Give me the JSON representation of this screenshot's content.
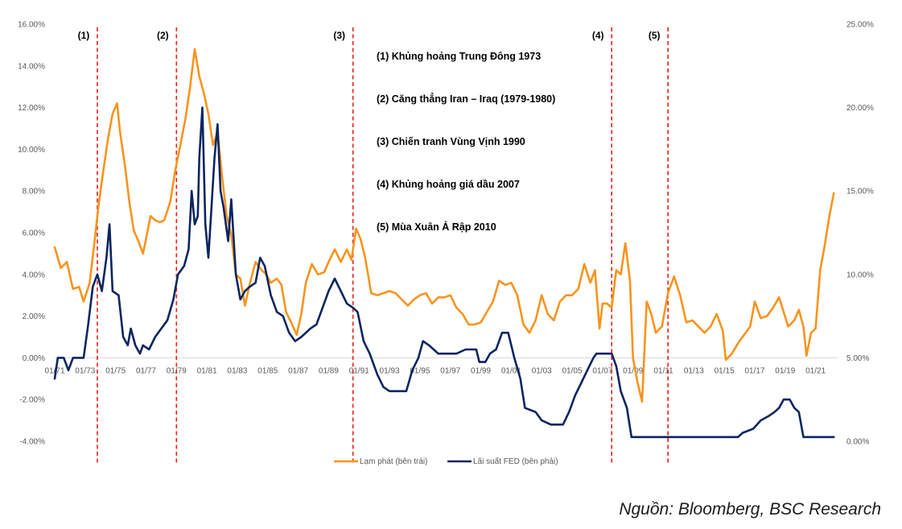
{
  "source": "Nguồn: Bloomberg, BSC Research",
  "chart_data": {
    "type": "line",
    "title": "",
    "x_start_year": 1971,
    "x_end_year": 2022.5,
    "x_tick_labels": [
      "01/71",
      "01/73",
      "01/75",
      "01/77",
      "01/79",
      "01/81",
      "01/83",
      "01/85",
      "01/87",
      "01/89",
      "01/91",
      "01/93",
      "01/95",
      "01/97",
      "01/99",
      "01/01",
      "01/03",
      "01/05",
      "01/07",
      "01/09",
      "01/11",
      "01/13",
      "01/15",
      "01/17",
      "01/19",
      "01/21"
    ],
    "y_left": {
      "min": -4,
      "max": 16,
      "step": 2,
      "tick_labels": [
        "-4.00%",
        "-2.00%",
        "0.00%",
        "2.00%",
        "4.00%",
        "6.00%",
        "8.00%",
        "10.00%",
        "12.00%",
        "14.00%",
        "16.00%"
      ]
    },
    "y_right": {
      "min": 0,
      "max": 25,
      "step": 5,
      "tick_labels": [
        "0.00%",
        "5.00%",
        "10.00%",
        "15.00%",
        "20.00%",
        "25.00%"
      ]
    },
    "series": [
      {
        "name": "Lạm phát (bên trái)",
        "axis": "left",
        "color": "#F7941D",
        "points": [
          [
            1971.0,
            5.3
          ],
          [
            1971.4,
            4.3
          ],
          [
            1971.8,
            4.6
          ],
          [
            1972.2,
            3.3
          ],
          [
            1972.6,
            3.4
          ],
          [
            1972.9,
            2.7
          ],
          [
            1973.3,
            3.6
          ],
          [
            1973.6,
            5.5
          ],
          [
            1973.9,
            7.4
          ],
          [
            1974.2,
            9.0
          ],
          [
            1974.5,
            10.5
          ],
          [
            1974.8,
            11.7
          ],
          [
            1975.1,
            12.2
          ],
          [
            1975.3,
            10.8
          ],
          [
            1975.6,
            9.3
          ],
          [
            1975.9,
            7.5
          ],
          [
            1976.2,
            6.1
          ],
          [
            1976.5,
            5.6
          ],
          [
            1976.8,
            5.0
          ],
          [
            1977.0,
            5.7
          ],
          [
            1977.3,
            6.8
          ],
          [
            1977.6,
            6.6
          ],
          [
            1977.9,
            6.5
          ],
          [
            1978.2,
            6.6
          ],
          [
            1978.6,
            7.5
          ],
          [
            1978.9,
            8.9
          ],
          [
            1979.2,
            10.0
          ],
          [
            1979.6,
            11.5
          ],
          [
            1979.9,
            13.0
          ],
          [
            1980.2,
            14.8
          ],
          [
            1980.5,
            13.5
          ],
          [
            1980.8,
            12.7
          ],
          [
            1981.1,
            11.7
          ],
          [
            1981.4,
            10.2
          ],
          [
            1981.7,
            10.8
          ],
          [
            1982.0,
            8.7
          ],
          [
            1982.3,
            6.8
          ],
          [
            1982.6,
            5.9
          ],
          [
            1982.9,
            4.0
          ],
          [
            1983.2,
            3.8
          ],
          [
            1983.5,
            2.5
          ],
          [
            1983.8,
            3.5
          ],
          [
            1984.2,
            4.6
          ],
          [
            1984.6,
            4.2
          ],
          [
            1984.9,
            4.0
          ],
          [
            1985.2,
            3.6
          ],
          [
            1985.6,
            3.8
          ],
          [
            1985.9,
            3.5
          ],
          [
            1986.2,
            2.2
          ],
          [
            1986.6,
            1.6
          ],
          [
            1986.9,
            1.1
          ],
          [
            1987.2,
            2.1
          ],
          [
            1987.5,
            3.6
          ],
          [
            1987.9,
            4.5
          ],
          [
            1988.3,
            4.0
          ],
          [
            1988.7,
            4.1
          ],
          [
            1989.0,
            4.6
          ],
          [
            1989.4,
            5.2
          ],
          [
            1989.8,
            4.6
          ],
          [
            1990.2,
            5.2
          ],
          [
            1990.5,
            4.7
          ],
          [
            1990.8,
            6.2
          ],
          [
            1991.1,
            5.7
          ],
          [
            1991.4,
            4.8
          ],
          [
            1991.8,
            3.1
          ],
          [
            1992.2,
            3.0
          ],
          [
            1992.6,
            3.1
          ],
          [
            1993.0,
            3.2
          ],
          [
            1993.4,
            3.1
          ],
          [
            1993.8,
            2.8
          ],
          [
            1994.2,
            2.5
          ],
          [
            1994.6,
            2.8
          ],
          [
            1995.0,
            3.0
          ],
          [
            1995.4,
            3.1
          ],
          [
            1995.8,
            2.6
          ],
          [
            1996.2,
            2.9
          ],
          [
            1996.6,
            2.9
          ],
          [
            1997.0,
            3.0
          ],
          [
            1997.4,
            2.4
          ],
          [
            1997.8,
            2.1
          ],
          [
            1998.2,
            1.6
          ],
          [
            1998.6,
            1.6
          ],
          [
            1999.0,
            1.7
          ],
          [
            1999.4,
            2.2
          ],
          [
            1999.8,
            2.7
          ],
          [
            2000.2,
            3.7
          ],
          [
            2000.6,
            3.5
          ],
          [
            2001.0,
            3.6
          ],
          [
            2001.4,
            3.0
          ],
          [
            2001.8,
            1.6
          ],
          [
            2002.2,
            1.2
          ],
          [
            2002.6,
            1.8
          ],
          [
            2003.0,
            3.0
          ],
          [
            2003.4,
            2.1
          ],
          [
            2003.8,
            1.8
          ],
          [
            2004.2,
            2.7
          ],
          [
            2004.6,
            3.0
          ],
          [
            2005.0,
            3.0
          ],
          [
            2005.4,
            3.3
          ],
          [
            2005.8,
            4.5
          ],
          [
            2006.2,
            3.6
          ],
          [
            2006.5,
            4.2
          ],
          [
            2006.8,
            1.4
          ],
          [
            2007.0,
            2.6
          ],
          [
            2007.3,
            2.6
          ],
          [
            2007.6,
            2.4
          ],
          [
            2007.9,
            4.2
          ],
          [
            2008.2,
            4.0
          ],
          [
            2008.5,
            5.5
          ],
          [
            2008.8,
            3.7
          ],
          [
            2009.0,
            0.0
          ],
          [
            2009.3,
            -1.2
          ],
          [
            2009.6,
            -2.1
          ],
          [
            2009.9,
            2.7
          ],
          [
            2010.2,
            2.1
          ],
          [
            2010.5,
            1.2
          ],
          [
            2010.9,
            1.5
          ],
          [
            2011.3,
            3.1
          ],
          [
            2011.7,
            3.9
          ],
          [
            2012.1,
            3.0
          ],
          [
            2012.5,
            1.7
          ],
          [
            2012.9,
            1.8
          ],
          [
            2013.3,
            1.5
          ],
          [
            2013.7,
            1.2
          ],
          [
            2014.1,
            1.5
          ],
          [
            2014.5,
            2.1
          ],
          [
            2014.9,
            1.3
          ],
          [
            2015.1,
            -0.1
          ],
          [
            2015.5,
            0.2
          ],
          [
            2015.9,
            0.7
          ],
          [
            2016.3,
            1.1
          ],
          [
            2016.7,
            1.5
          ],
          [
            2017.0,
            2.7
          ],
          [
            2017.4,
            1.9
          ],
          [
            2017.8,
            2.0
          ],
          [
            2018.2,
            2.4
          ],
          [
            2018.6,
            2.9
          ],
          [
            2018.9,
            2.2
          ],
          [
            2019.2,
            1.5
          ],
          [
            2019.6,
            1.8
          ],
          [
            2019.9,
            2.3
          ],
          [
            2020.2,
            1.5
          ],
          [
            2020.4,
            0.1
          ],
          [
            2020.7,
            1.2
          ],
          [
            2021.0,
            1.4
          ],
          [
            2021.3,
            4.2
          ],
          [
            2021.6,
            5.4
          ],
          [
            2021.9,
            6.8
          ],
          [
            2022.2,
            7.9
          ]
        ]
      },
      {
        "name": "Lãi suất FED (bên phải)",
        "axis": "right",
        "color": "#0B2560",
        "points": [
          [
            1971.0,
            3.75
          ],
          [
            1971.2,
            5.0
          ],
          [
            1971.6,
            5.0
          ],
          [
            1971.9,
            4.25
          ],
          [
            1972.2,
            5.0
          ],
          [
            1972.9,
            5.0
          ],
          [
            1973.2,
            7.0
          ],
          [
            1973.5,
            9.25
          ],
          [
            1973.8,
            10.0
          ],
          [
            1974.1,
            9.0
          ],
          [
            1974.4,
            11.0
          ],
          [
            1974.6,
            13.0
          ],
          [
            1974.8,
            9.0
          ],
          [
            1975.2,
            8.75
          ],
          [
            1975.5,
            6.25
          ],
          [
            1975.8,
            5.75
          ],
          [
            1976.0,
            6.75
          ],
          [
            1976.3,
            5.75
          ],
          [
            1976.6,
            5.25
          ],
          [
            1976.8,
            5.75
          ],
          [
            1977.2,
            5.5
          ],
          [
            1977.6,
            6.25
          ],
          [
            1978.0,
            6.75
          ],
          [
            1978.4,
            7.25
          ],
          [
            1978.8,
            8.5
          ],
          [
            1979.1,
            10.0
          ],
          [
            1979.5,
            10.5
          ],
          [
            1979.8,
            11.5
          ],
          [
            1980.0,
            15.0
          ],
          [
            1980.2,
            13.0
          ],
          [
            1980.4,
            13.5
          ],
          [
            1980.5,
            17.0
          ],
          [
            1980.6,
            18.5
          ],
          [
            1980.7,
            20.0
          ],
          [
            1980.9,
            13.0
          ],
          [
            1981.1,
            11.0
          ],
          [
            1981.3,
            14.0
          ],
          [
            1981.5,
            17.0
          ],
          [
            1981.7,
            19.0
          ],
          [
            1981.9,
            15.0
          ],
          [
            1982.1,
            14.0
          ],
          [
            1982.4,
            12.0
          ],
          [
            1982.6,
            14.5
          ],
          [
            1982.9,
            10.0
          ],
          [
            1983.2,
            8.5
          ],
          [
            1983.5,
            9.0
          ],
          [
            1983.8,
            9.25
          ],
          [
            1984.2,
            9.5
          ],
          [
            1984.5,
            11.0
          ],
          [
            1984.8,
            10.5
          ],
          [
            1985.2,
            8.75
          ],
          [
            1985.6,
            7.75
          ],
          [
            1986.0,
            7.5
          ],
          [
            1986.4,
            6.5
          ],
          [
            1986.8,
            6.0
          ],
          [
            1987.2,
            6.25
          ],
          [
            1987.5,
            6.5
          ],
          [
            1987.8,
            6.75
          ],
          [
            1988.2,
            7.0
          ],
          [
            1988.6,
            8.0
          ],
          [
            1989.0,
            9.0
          ],
          [
            1989.4,
            9.75
          ],
          [
            1989.8,
            9.0
          ],
          [
            1990.2,
            8.25
          ],
          [
            1990.6,
            8.0
          ],
          [
            1990.9,
            7.75
          ],
          [
            1991.3,
            6.0
          ],
          [
            1991.7,
            5.25
          ],
          [
            1992.2,
            4.0
          ],
          [
            1992.6,
            3.25
          ],
          [
            1993.0,
            3.0
          ],
          [
            1994.1,
            3.0
          ],
          [
            1994.5,
            4.25
          ],
          [
            1994.9,
            5.0
          ],
          [
            1995.2,
            6.0
          ],
          [
            1995.6,
            5.75
          ],
          [
            1995.9,
            5.5
          ],
          [
            1996.2,
            5.25
          ],
          [
            1997.4,
            5.25
          ],
          [
            1998.0,
            5.5
          ],
          [
            1998.7,
            5.5
          ],
          [
            1998.9,
            4.75
          ],
          [
            1999.3,
            4.75
          ],
          [
            1999.6,
            5.25
          ],
          [
            2000.0,
            5.5
          ],
          [
            2000.4,
            6.5
          ],
          [
            2000.8,
            6.5
          ],
          [
            2001.2,
            5.0
          ],
          [
            2001.6,
            3.75
          ],
          [
            2001.9,
            2.0
          ],
          [
            2002.6,
            1.75
          ],
          [
            2003.0,
            1.25
          ],
          [
            2003.6,
            1.0
          ],
          [
            2004.4,
            1.0
          ],
          [
            2004.8,
            1.75
          ],
          [
            2005.2,
            2.75
          ],
          [
            2005.6,
            3.5
          ],
          [
            2006.0,
            4.25
          ],
          [
            2006.4,
            5.0
          ],
          [
            2006.6,
            5.25
          ],
          [
            2007.6,
            5.25
          ],
          [
            2007.9,
            4.5
          ],
          [
            2008.2,
            3.0
          ],
          [
            2008.6,
            2.0
          ],
          [
            2008.9,
            0.25
          ],
          [
            2015.9,
            0.25
          ],
          [
            2016.2,
            0.5
          ],
          [
            2016.9,
            0.75
          ],
          [
            2017.4,
            1.25
          ],
          [
            2017.9,
            1.5
          ],
          [
            2018.3,
            1.75
          ],
          [
            2018.6,
            2.0
          ],
          [
            2018.9,
            2.5
          ],
          [
            2019.3,
            2.5
          ],
          [
            2019.6,
            2.0
          ],
          [
            2019.9,
            1.75
          ],
          [
            2020.2,
            0.25
          ],
          [
            2022.2,
            0.25
          ]
        ]
      }
    ],
    "events": [
      {
        "label": "(1)",
        "x": 1973.8
      },
      {
        "label": "(2)",
        "x": 1979.0
      },
      {
        "label": "(3)",
        "x": 1990.6
      },
      {
        "label": "(4)",
        "x": 2007.6
      },
      {
        "label": "(5)",
        "x": 2011.3
      }
    ],
    "annotations": [
      "(1) Khủng hoảng Trung Đông 1973",
      "(2) Căng thẳng Iran – Iraq (1979-1980)",
      "(3) Chiến tranh Vùng Vịnh 1990",
      "(4) Khủng hoảng giá dầu  2007",
      "(5) Mùa Xuân Ả Rập 2010"
    ],
    "grid": false,
    "legend_position": "bottom-center"
  }
}
